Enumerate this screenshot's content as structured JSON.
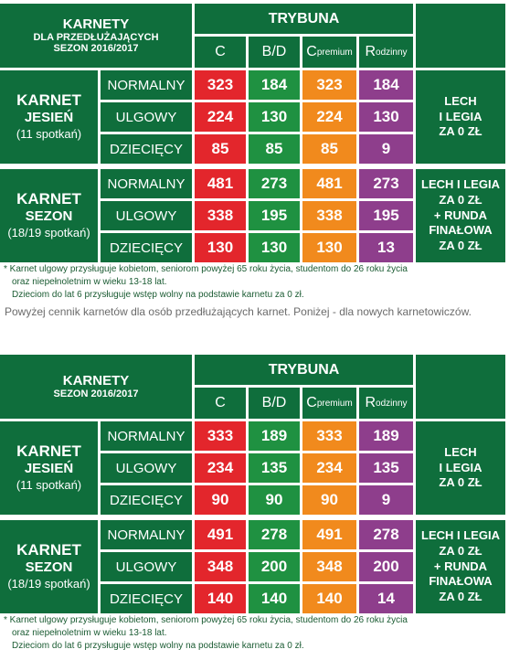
{
  "colors": {
    "dark_green": "#0f6e3c",
    "red": "#e3262c",
    "green": "#1f9141",
    "orange": "#f18a1d",
    "purple": "#8e3e8c",
    "note_text": "#1a5b32"
  },
  "table1": {
    "title_line1": "KARNETY",
    "title_line2": "DLA PRZEDŁUŻAJĄCYCH",
    "title_line3": "SEZON 2016/2017",
    "tribune": "TRYBUNA",
    "col_c": "C",
    "col_bd": "B/D",
    "col_cp_main": "C",
    "col_cp_sub": "premium",
    "col_r_main": "R",
    "col_r_sub": "odzinny",
    "autumn": {
      "l1": "KARNET",
      "l2": "JESIEŃ",
      "l3": "(11 spotkań)",
      "rows": [
        {
          "type": "NORMALNY",
          "c": "323",
          "bd": "184",
          "cp": "323",
          "r": "184"
        },
        {
          "type": "ULGOWY",
          "c": "224",
          "bd": "130",
          "cp": "224",
          "r": "130"
        },
        {
          "type": "DZIECIĘCY",
          "c": "85",
          "bd": "85",
          "cp": "85",
          "r": "9"
        }
      ],
      "side_l1": "LECH",
      "side_l2": "I LEGIA",
      "side_l3": "ZA 0 ZŁ"
    },
    "season": {
      "l1": "KARNET",
      "l2": "SEZON",
      "l3": "(18/19 spotkań)",
      "rows": [
        {
          "type": "NORMALNY",
          "c": "481",
          "bd": "273",
          "cp": "481",
          "r": "273"
        },
        {
          "type": "ULGOWY",
          "c": "338",
          "bd": "195",
          "cp": "338",
          "r": "195"
        },
        {
          "type": "DZIECIĘCY",
          "c": "130",
          "bd": "130",
          "cp": "130",
          "r": "13"
        }
      ],
      "side_l1": "LECH I LEGIA",
      "side_l2": "ZA 0 ZŁ",
      "side_l3": "+ RUNDA",
      "side_l4": "FINAŁOWA",
      "side_l5": "ZA 0 ZŁ"
    },
    "note1": "* Karnet ulgowy przysługuje kobietom, seniorom powyżej 65 roku życia, studentom do 26 roku życia",
    "note2": "oraz niepełnoletnim w wieku 13-18 lat.",
    "note3": "Dzieciom do lat 6 przysługuje wstęp wolny na podstawie karnetu za 0 zł."
  },
  "middle_text": "Powyżej cennik karnetów dla osób przedłużających karnet. Poniżej - dla nowych karnetowiczów.",
  "table2": {
    "title_line1": "KARNETY",
    "title_line2": "SEZON 2016/2017",
    "tribune": "TRYBUNA",
    "col_c": "C",
    "col_bd": "B/D",
    "col_cp_main": "C",
    "col_cp_sub": "premium",
    "col_r_main": "R",
    "col_r_sub": "odzinny",
    "autumn": {
      "l1": "KARNET",
      "l2": "JESIEŃ",
      "l3": "(11 spotkań)",
      "rows": [
        {
          "type": "NORMALNY",
          "c": "333",
          "bd": "189",
          "cp": "333",
          "r": "189"
        },
        {
          "type": "ULGOWY",
          "c": "234",
          "bd": "135",
          "cp": "234",
          "r": "135"
        },
        {
          "type": "DZIECIĘCY",
          "c": "90",
          "bd": "90",
          "cp": "90",
          "r": "9"
        }
      ],
      "side_l1": "LECH",
      "side_l2": "I LEGIA",
      "side_l3": "ZA 0 ZŁ"
    },
    "season": {
      "l1": "KARNET",
      "l2": "SEZON",
      "l3": "(18/19 spotkań)",
      "rows": [
        {
          "type": "NORMALNY",
          "c": "491",
          "bd": "278",
          "cp": "491",
          "r": "278"
        },
        {
          "type": "ULGOWY",
          "c": "348",
          "bd": "200",
          "cp": "348",
          "r": "200"
        },
        {
          "type": "DZIECIĘCY",
          "c": "140",
          "bd": "140",
          "cp": "140",
          "r": "14"
        }
      ],
      "side_l1": "LECH I LEGIA",
      "side_l2": "ZA 0 ZŁ",
      "side_l3": "+ RUNDA",
      "side_l4": "FINAŁOWA",
      "side_l5": "ZA 0 ZŁ"
    },
    "note1": "* Karnet ulgowy przysługuje kobietom, seniorom powyżej 65 roku życia, studentom do 26 roku życia",
    "note2": "oraz niepełnoletnim w wieku 13-18 lat.",
    "note3": "Dzieciom do lat 6 przysługuje wstęp wolny na podstawie karnetu za 0 zł."
  }
}
